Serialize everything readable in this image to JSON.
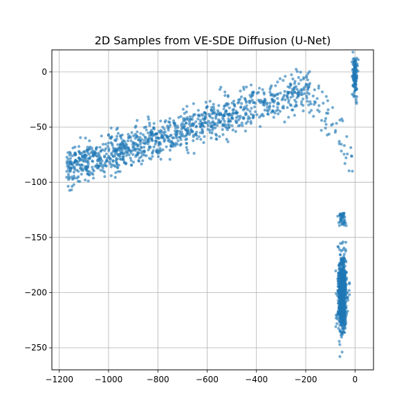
{
  "chart_data": {
    "type": "scatter",
    "title": "2D Samples from VE-SDE Diffusion (U-Net)",
    "xlabel": "",
    "ylabel": "",
    "xlim": [
      -1230,
      75
    ],
    "ylim": [
      -270,
      20
    ],
    "xticks": [
      -1200,
      -1000,
      -800,
      -600,
      -400,
      -200,
      0
    ],
    "xtick_labels": [
      "−1200",
      "−1000",
      "−800",
      "−600",
      "−400",
      "−200",
      "0"
    ],
    "yticks": [
      0,
      -50,
      -100,
      -150,
      -200,
      -250
    ],
    "ytick_labels": [
      "0",
      "−50",
      "−100",
      "−150",
      "−200",
      "−250"
    ],
    "grid": true,
    "legend": false,
    "colors": {
      "point": "#1f77b4",
      "grid": "#b0b0b0",
      "axes": "#000000"
    },
    "series": [
      {
        "clusters": [
          {
            "label": "band",
            "count": 1100,
            "x_range": [
              -1170,
              -180
            ],
            "y_at_x_min": -88,
            "y_at_x_max": -15,
            "y_spread": 9
          },
          {
            "label": "vertical-cluster",
            "count": 800,
            "center_x": -52,
            "center_y": -201,
            "sd_x": 9,
            "sd_y": 17,
            "y_range": [
              -258,
              -140
            ]
          },
          {
            "label": "top-right-cluster",
            "count": 110,
            "center_x": 0,
            "center_y": -3,
            "sd_x": 5,
            "sd_y": 5
          },
          {
            "label": "bridge-scatter",
            "count": 60,
            "x_range": [
              -200,
              -10
            ],
            "y_range": [
              -90,
              5
            ]
          }
        ]
      }
    ]
  }
}
